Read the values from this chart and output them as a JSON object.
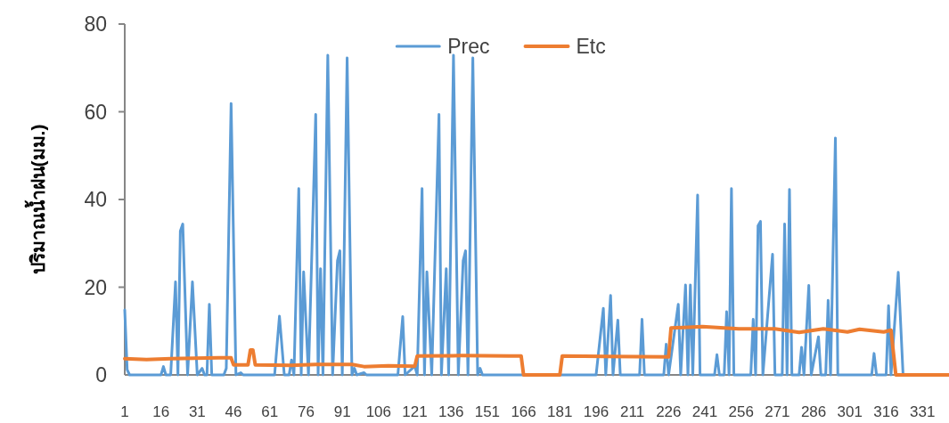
{
  "chart_data": {
    "type": "line",
    "ylabel": "ปริมาณน้ำฝน(มม.)",
    "xlim": [
      1,
      342
    ],
    "xticks": [
      1,
      16,
      31,
      46,
      61,
      76,
      91,
      106,
      121,
      136,
      151,
      166,
      181,
      196,
      211,
      226,
      241,
      256,
      271,
      286,
      301,
      316,
      331
    ],
    "ylim": [
      0,
      80
    ],
    "yticks": [
      0,
      20,
      40,
      60,
      80
    ],
    "legend": "top",
    "series": [
      {
        "name": "Prec",
        "color": "#5b9bd5",
        "x": [
          1,
          2,
          3,
          16,
          17,
          18,
          20,
          22,
          23,
          24,
          25,
          27,
          29,
          31,
          33,
          34,
          35,
          36,
          37,
          42,
          43,
          45,
          47,
          49,
          50,
          63,
          65,
          67,
          69,
          70,
          71,
          73,
          74,
          75,
          77,
          80,
          81,
          82,
          83,
          85,
          87,
          89,
          90,
          91,
          93,
          95,
          96,
          97,
          100,
          101,
          114,
          116,
          117,
          121,
          122,
          124,
          125,
          126,
          128,
          131,
          132,
          134,
          135,
          137,
          139,
          141,
          142,
          143,
          145,
          147,
          148,
          149,
          196,
          199,
          200,
          202,
          203,
          205,
          206,
          214,
          215,
          216,
          224,
          225,
          226,
          230,
          231,
          233,
          234,
          235,
          236,
          238,
          239,
          245,
          246,
          247,
          249,
          250,
          251,
          252,
          253,
          260,
          261,
          262,
          263,
          264,
          265,
          269,
          270,
          273,
          274,
          275,
          276,
          277,
          280,
          281,
          282,
          284,
          285,
          288,
          289,
          291,
          292,
          293,
          295,
          296,
          310,
          311,
          312,
          316,
          317,
          318,
          321,
          323
        ],
        "values": [
          14.8,
          1.2,
          0,
          0,
          1.9,
          0,
          0,
          21.2,
          0,
          32.8,
          34.4,
          0,
          21.2,
          0,
          1.5,
          0,
          0,
          16.1,
          0,
          0,
          1.5,
          61.9,
          0,
          0.5,
          0,
          0,
          13.4,
          0,
          0,
          3.4,
          0,
          42.5,
          0,
          23.5,
          0,
          59.4,
          0,
          24.2,
          0,
          72.9,
          0,
          26,
          28.3,
          0,
          72.3,
          0,
          1.5,
          0,
          0.5,
          0,
          0,
          13.3,
          0,
          2,
          0,
          42.5,
          0,
          23.5,
          0,
          59.4,
          0,
          24.2,
          0,
          72.9,
          0,
          26,
          28.3,
          0,
          72.3,
          0,
          1.5,
          0,
          0,
          15.2,
          0,
          18.1,
          0,
          12.5,
          0,
          0,
          12.7,
          0,
          0,
          7,
          0,
          16.1,
          0,
          20.5,
          0,
          20.5,
          0,
          41,
          0,
          0,
          4.6,
          0,
          0,
          14.4,
          0,
          42.5,
          0,
          0,
          12.7,
          0,
          34,
          35,
          0,
          27.5,
          0,
          0,
          34.4,
          0,
          42.3,
          0,
          0,
          6.3,
          0,
          20.4,
          0,
          8.7,
          0,
          0,
          17,
          0,
          54,
          0,
          0,
          4.9,
          0,
          0,
          15.8,
          0,
          23.4,
          0
        ]
      },
      {
        "name": "Etc",
        "color": "#ed7d31",
        "x": [
          1,
          10,
          20,
          30,
          40,
          45,
          46,
          52,
          53,
          54,
          55,
          70,
          80,
          95,
          100,
          110,
          121,
          122,
          140,
          160,
          165,
          166,
          181,
          182,
          200,
          226,
          227,
          240,
          255,
          270,
          280,
          290,
          300,
          305,
          315,
          318,
          320,
          342
        ],
        "values": [
          3.7,
          3.5,
          3.7,
          3.8,
          3.9,
          3.9,
          2.3,
          2.3,
          5.7,
          5.7,
          2.3,
          2.2,
          2.4,
          2.4,
          1.9,
          2.1,
          2,
          4.3,
          4.4,
          4.3,
          4.3,
          0,
          0,
          4.3,
          4.2,
          4.1,
          10.7,
          11,
          10.5,
          10.5,
          9.7,
          10.5,
          9.8,
          10.4,
          9.8,
          10.2,
          0,
          0
        ]
      }
    ]
  }
}
